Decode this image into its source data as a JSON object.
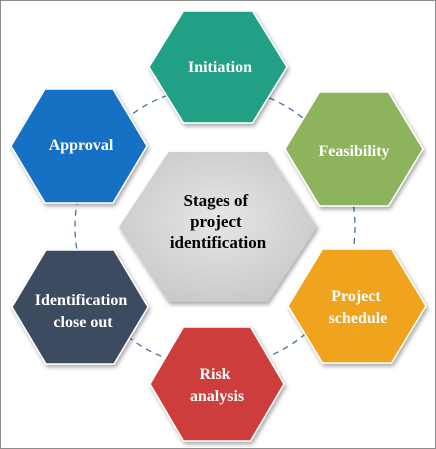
{
  "diagram": {
    "center": {
      "lines": [
        "Stages of",
        "project",
        "identification"
      ],
      "fill": "#d4d4d4",
      "text_color": "#000000"
    },
    "stages": [
      {
        "id": "initiation",
        "lines": [
          "Initiation"
        ],
        "fill": "#21a085"
      },
      {
        "id": "feasibility",
        "lines": [
          "Feasibility"
        ],
        "fill": "#8db35b"
      },
      {
        "id": "project-schedule",
        "lines": [
          "Project",
          "schedule"
        ],
        "fill": "#f0a31e"
      },
      {
        "id": "risk-analysis",
        "lines": [
          "Risk",
          "analysis"
        ],
        "fill": "#cc3d3b"
      },
      {
        "id": "identification-close-out",
        "lines": [
          "Identification",
          "close out"
        ],
        "fill": "#3c4b60"
      },
      {
        "id": "approval",
        "lines": [
          "Approval"
        ],
        "fill": "#1670c4"
      }
    ],
    "stage_text_color": "#ffffff",
    "connector_color": "#4a6fa5"
  }
}
